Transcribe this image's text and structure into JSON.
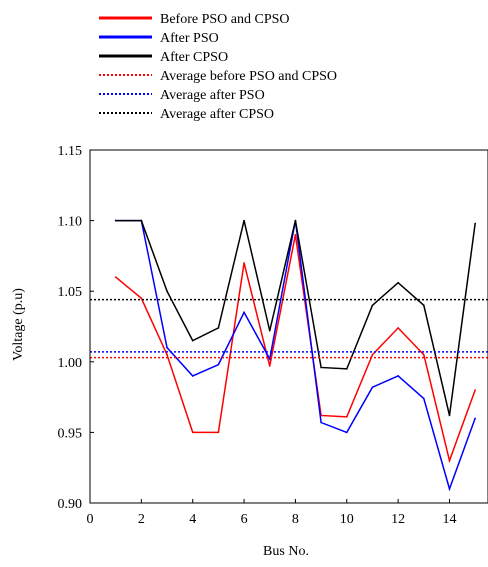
{
  "chart_data": {
    "type": "line",
    "title": "",
    "xlabel": "Bus No.",
    "ylabel": "Voltage (p.u)",
    "xlim": [
      0,
      15.5
    ],
    "ylim": [
      0.9,
      1.15
    ],
    "x_ticks": [
      0,
      2,
      4,
      6,
      8,
      10,
      12,
      14
    ],
    "x_tick_labels": [
      "0",
      "2",
      "4",
      "6",
      "8",
      "10",
      "12",
      "14"
    ],
    "y_ticks": [
      0.9,
      0.95,
      1.0,
      1.05,
      1.1,
      1.15
    ],
    "y_tick_labels": [
      "0.90",
      "0.95",
      "1.00",
      "1.05",
      "1.10",
      "1.15"
    ],
    "grid": false,
    "legend_position": "top",
    "x": [
      1,
      2,
      3,
      4,
      5,
      6,
      7,
      8,
      9,
      10,
      11,
      12,
      13,
      14,
      15
    ],
    "series": [
      {
        "name": "Before PSO and CPSO",
        "color": "#ff0000",
        "style": "solid",
        "values": [
          1.06,
          1.045,
          1.005,
          0.95,
          0.95,
          1.07,
          0.997,
          1.09,
          0.962,
          0.961,
          1.005,
          1.024,
          1.005,
          0.93,
          0.98
        ]
      },
      {
        "name": "After PSO",
        "color": "#0000ff",
        "style": "solid",
        "values": [
          1.1,
          1.1,
          1.01,
          0.99,
          0.998,
          1.035,
          1.002,
          1.1,
          0.957,
          0.95,
          0.982,
          0.99,
          0.974,
          0.91,
          0.96
        ]
      },
      {
        "name": "After CPSO",
        "color": "#000000",
        "style": "solid",
        "values": [
          1.1,
          1.1,
          1.05,
          1.015,
          1.024,
          1.1,
          1.022,
          1.1,
          0.996,
          0.995,
          1.04,
          1.056,
          1.04,
          0.962,
          1.098
        ]
      },
      {
        "name": "Average before PSO and CPSO",
        "color": "#ff0000",
        "style": "dotted",
        "value": 1.003
      },
      {
        "name": "Average after PSO",
        "color": "#0000ff",
        "style": "dotted",
        "value": 1.007
      },
      {
        "name": "Average after CPSO",
        "color": "#000000",
        "style": "dotted",
        "value": 1.044
      }
    ]
  }
}
